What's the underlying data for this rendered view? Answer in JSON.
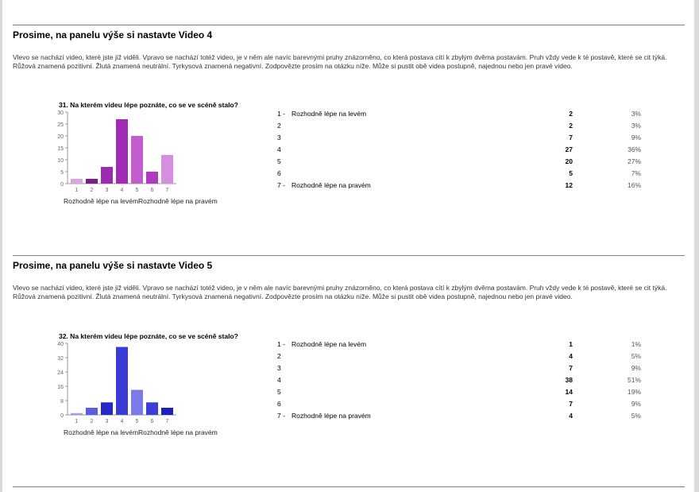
{
  "sections": [
    {
      "title": "Prosime, na panelu výše si nastavte Video 4",
      "description": "Vlevo se nachází video, které jste již viděli. Vpravo se nachází totéž video, je v něm ale navíc barevnými pruhy znázorněno, co která postava cítí k zbylým dvěma postavám. Pruh vždy vede k té postavě, které se cit týká. Růžová znamená pozitivní. Žlutá znamená neutrální. Tyrkysová znamená negativní. Zodpovězte prosím na otázku níže. Může si pustit obě videa postupně, najednou nebo jen pravé video.",
      "chart_caption": "Rozhodně lépe na levémRozhodně lépe na pravém",
      "table": [
        {
          "num": "1 -",
          "label": "Rozhodně lépe na levém",
          "count": "2",
          "pct": "3%"
        },
        {
          "num": "2",
          "label": "",
          "count": "2",
          "pct": "3%"
        },
        {
          "num": "3",
          "label": "",
          "count": "7",
          "pct": "9%"
        },
        {
          "num": "4",
          "label": "",
          "count": "27",
          "pct": "36%"
        },
        {
          "num": "5",
          "label": "",
          "count": "20",
          "pct": "27%"
        },
        {
          "num": "6",
          "label": "",
          "count": "5",
          "pct": "7%"
        },
        {
          "num": "7 -",
          "label": "Rozhodně lépe na pravém",
          "count": "12",
          "pct": "16%"
        }
      ]
    },
    {
      "title": "Prosime, na panelu výše si nastavte Video 5",
      "description": "Vlevo se nachází video, které jste již viděli. Vpravo se nachází totéž video, je v něm ale navíc barevnými pruhy znázorněno, co která postava cítí k zbylým dvěma postavám. Pruh vždy vede k té postavě, které se cit týká. Růžová znamená pozitivní. Žlutá znamená neutrální. Tyrkysová znamená negativní. Zodpovězte prosím na otázku níže. Může si pustit obě videa postupně, najednou nebo jen pravé video.",
      "chart_caption": "Rozhodně lépe na levémRozhodně lépe na pravém",
      "table": [
        {
          "num": "1 -",
          "label": "Rozhodně lépe na levém",
          "count": "1",
          "pct": "1%"
        },
        {
          "num": "2",
          "label": "",
          "count": "4",
          "pct": "5%"
        },
        {
          "num": "3",
          "label": "",
          "count": "7",
          "pct": "9%"
        },
        {
          "num": "4",
          "label": "",
          "count": "38",
          "pct": "51%"
        },
        {
          "num": "5",
          "label": "",
          "count": "14",
          "pct": "19%"
        },
        {
          "num": "6",
          "label": "",
          "count": "7",
          "pct": "9%"
        },
        {
          "num": "7 -",
          "label": "Rozhodně lépe na pravém",
          "count": "4",
          "pct": "5%"
        }
      ]
    }
  ],
  "chart_data": [
    {
      "type": "bar",
      "title": "31. Na kterém videu lépe poznáte, co se ve scéně stalo?",
      "categories": [
        "1",
        "2",
        "3",
        "4",
        "5",
        "6",
        "7"
      ],
      "values": [
        2,
        2,
        7,
        27,
        20,
        5,
        12
      ],
      "ylim": [
        0,
        30
      ],
      "yticks": [
        0,
        5,
        10,
        15,
        20,
        25,
        30
      ],
      "bar_colors": [
        "#d9a6e3",
        "#7a1a8e",
        "#9b2bb0",
        "#a22bb5",
        "#c25ccf",
        "#b03bc2",
        "#d68fe0"
      ],
      "grid": false,
      "legend": "none"
    },
    {
      "type": "bar",
      "title": "32. Na kterém videu lépe poznáte, co se ve scéně stalo?",
      "categories": [
        "1",
        "2",
        "3",
        "4",
        "5",
        "6",
        "7"
      ],
      "values": [
        1,
        4,
        7,
        38,
        14,
        7,
        4
      ],
      "ylim": [
        0,
        40
      ],
      "yticks": [
        0,
        8,
        16,
        24,
        32,
        40
      ],
      "bar_colors": [
        "#9fa0ea",
        "#5b5ce0",
        "#2628c8",
        "#3a3cd6",
        "#7a7be8",
        "#3c3ed8",
        "#1e20b8"
      ],
      "grid": false,
      "legend": "none"
    }
  ]
}
